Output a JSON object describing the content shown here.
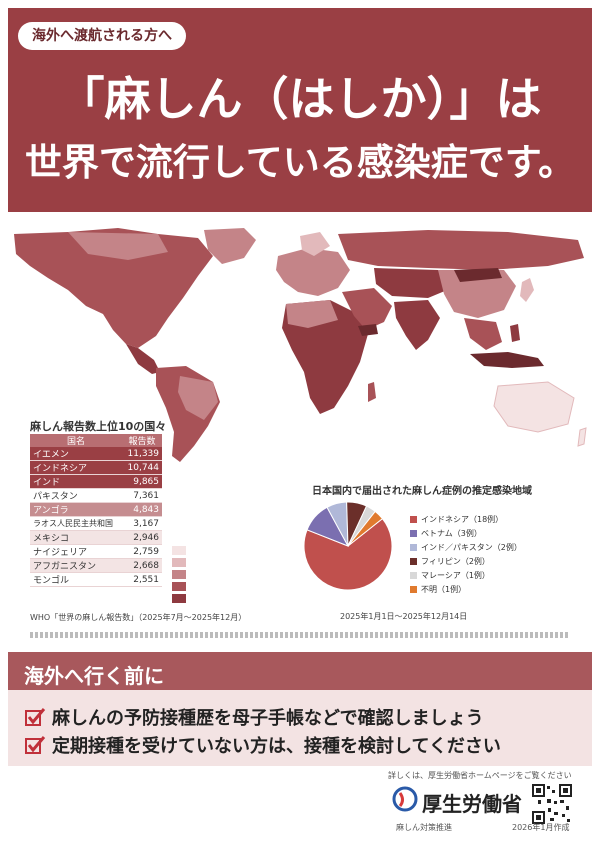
{
  "header": {
    "tag": "海外へ渡航される方へ",
    "headline_line1": "「麻しん（はしか）」は",
    "headline_line2": "世界で流行している感染症です。"
  },
  "map": {
    "colors": {
      "darkest": "#8e3a40",
      "dark": "#a85257",
      "mid": "#c48488",
      "light": "#e2b9bb",
      "lightest": "#f4e3e3",
      "ocean": "#ffffff"
    }
  },
  "top10": {
    "title": "麻しん報告数上位10の国々",
    "columns": [
      "国名",
      "報告数"
    ],
    "rows": [
      {
        "country": "イエメン",
        "count": "11,339"
      },
      {
        "country": "インドネシア",
        "count": "10,744"
      },
      {
        "country": "インド",
        "count": "9,865"
      },
      {
        "country": "パキスタン",
        "count": "7,361"
      },
      {
        "country": "アンゴラ",
        "count": "4,843"
      },
      {
        "country": "ラオス人民民主共和国",
        "count": "3,167"
      },
      {
        "country": "メキシコ",
        "count": "2,946"
      },
      {
        "country": "ナイジェリア",
        "count": "2,759"
      },
      {
        "country": "アフガニスタン",
        "count": "2,668"
      },
      {
        "country": "モンゴル",
        "count": "2,551"
      }
    ]
  },
  "pie": {
    "title": "日本国内で届出された麻しん症例の推定感染地域",
    "legend": [
      {
        "label": "インドネシア（18例）",
        "color": "#c0504d"
      },
      {
        "label": "ベトナム（3例）",
        "color": "#7b6fb0"
      },
      {
        "label": "インド／パキスタン（2例）",
        "color": "#b0b8d8"
      },
      {
        "label": "フィリピン（2例）",
        "color": "#6b2f2a"
      },
      {
        "label": "マレーシア（1例）",
        "color": "#d8d8d8"
      },
      {
        "label": "不明（1例）",
        "color": "#e07a2e"
      }
    ],
    "period_note": "2025年1月1日〜2025年12月14日"
  },
  "chart_data": {
    "type": "pie",
    "categories": [
      "インドネシア",
      "ベトナム",
      "インド／パキスタン",
      "フィリピン",
      "マレーシア",
      "不明"
    ],
    "values": [
      18,
      3,
      2,
      2,
      1,
      1
    ],
    "title": "日本国内で届出された麻しん症例の推定感染地域"
  },
  "source_note": "WHO「世界の麻しん報告数」（2025年7月〜2025年12月）",
  "travel": {
    "title": "海外へ行く前に",
    "items": [
      "麻しんの予防接種歴を母子手帳などで確認しましょう",
      "定期接種を受けていない方は、接種を検討してください"
    ],
    "check_color": "#c0303a"
  },
  "footer": {
    "note": "詳しくは、厚生労働省ホームページをご覧ください",
    "ministry": "厚生労働省",
    "left": "麻しん対策推進",
    "date": "2026年1月作成"
  }
}
